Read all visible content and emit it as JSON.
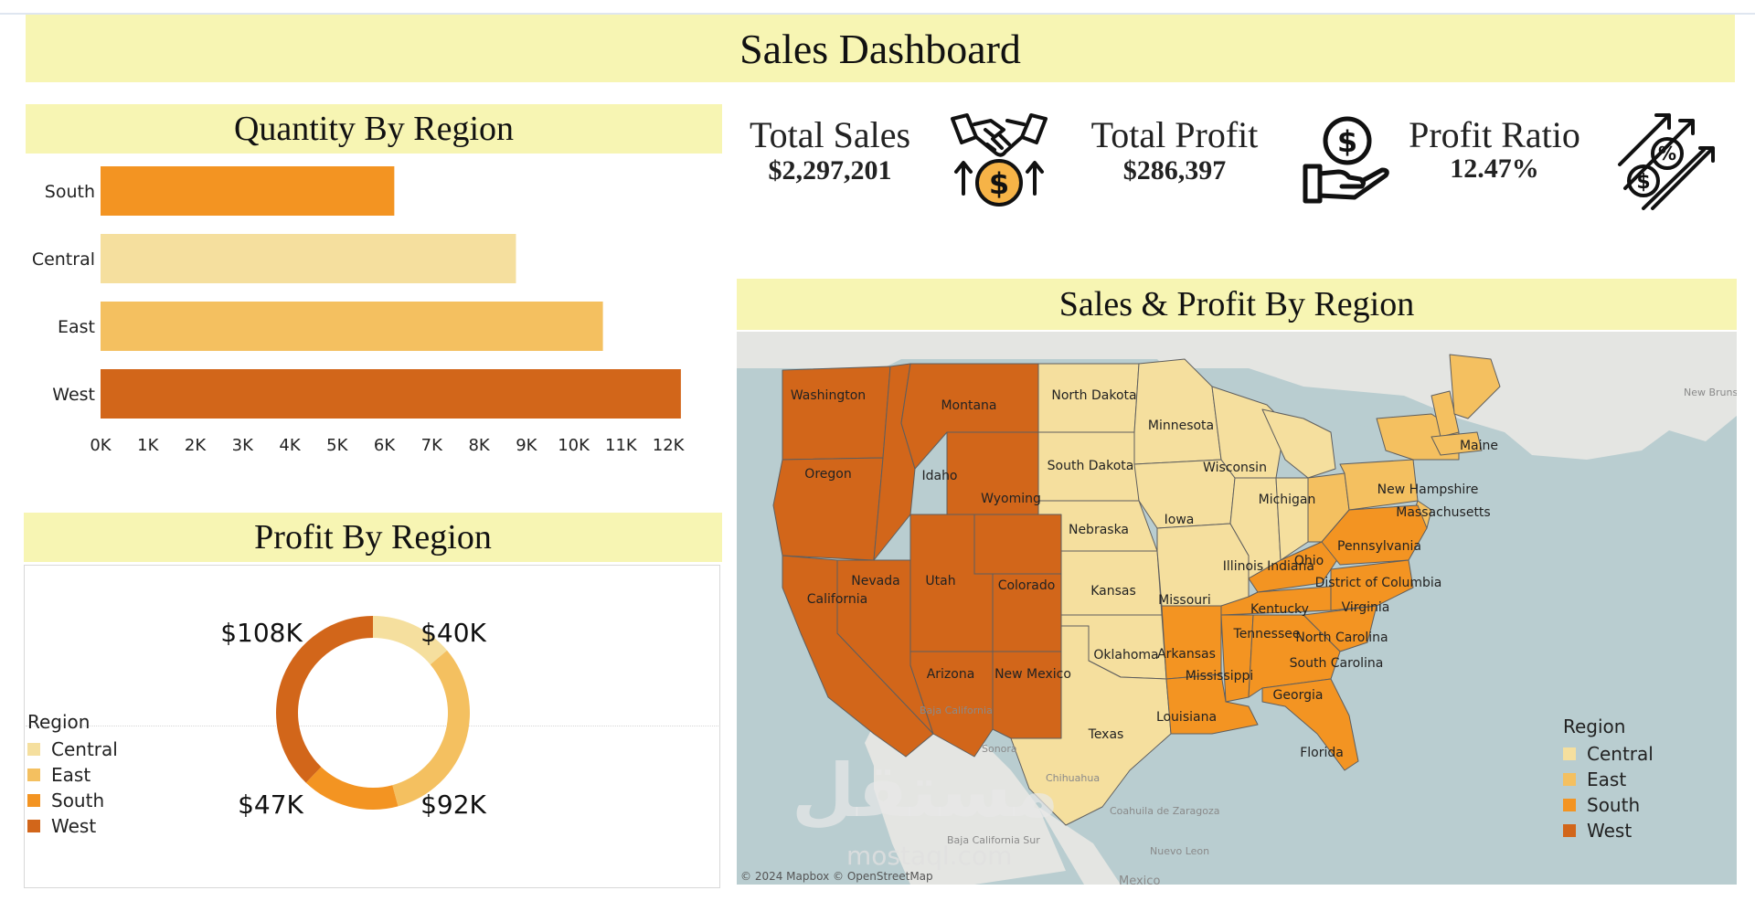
{
  "header": {
    "title": "Sales Dashboard"
  },
  "colors": {
    "Central": "#f5df9e",
    "East": "#f4c060",
    "South": "#f39422",
    "West": "#d2661a",
    "banner": "#f7f5b3",
    "water": "#b9cdd0",
    "land": "#e4e5e2"
  },
  "kpis": {
    "total_sales": {
      "label": "Total Sales",
      "value": "$2,297,201",
      "icon": "handshake-money-icon"
    },
    "total_profit": {
      "label": "Total Profit",
      "value": "$286,397",
      "icon": "hand-dollar-coin-icon"
    },
    "profit_ratio": {
      "label": "Profit Ratio",
      "value": "12.47%",
      "icon": "growth-arrows-percent-icon"
    }
  },
  "quantity_panel": {
    "title": "Quantity By Region"
  },
  "profit_panel": {
    "title": "Profit By Region",
    "legend_title": "Region",
    "legend": [
      "Central",
      "East",
      "South",
      "West"
    ]
  },
  "map_panel": {
    "title": "Sales & Profit By Region",
    "legend_title": "Region",
    "legend": [
      "Central",
      "East",
      "South",
      "West"
    ],
    "attribution": "© 2024 Mapbox © OpenStreetMap",
    "states": [
      {
        "name": "Washington",
        "region": "West"
      },
      {
        "name": "Oregon",
        "region": "West"
      },
      {
        "name": "California",
        "region": "West"
      },
      {
        "name": "Idaho",
        "region": "West"
      },
      {
        "name": "Nevada",
        "region": "West"
      },
      {
        "name": "Montana",
        "region": "West"
      },
      {
        "name": "Wyoming",
        "region": "West"
      },
      {
        "name": "Utah",
        "region": "West"
      },
      {
        "name": "Colorado",
        "region": "West"
      },
      {
        "name": "Arizona",
        "region": "West"
      },
      {
        "name": "New Mexico",
        "region": "West"
      },
      {
        "name": "North Dakota",
        "region": "Central"
      },
      {
        "name": "South Dakota",
        "region": "Central"
      },
      {
        "name": "Nebraska",
        "region": "Central"
      },
      {
        "name": "Kansas",
        "region": "Central"
      },
      {
        "name": "Oklahoma",
        "region": "Central"
      },
      {
        "name": "Texas",
        "region": "Central"
      },
      {
        "name": "Minnesota",
        "region": "Central"
      },
      {
        "name": "Iowa",
        "region": "Central"
      },
      {
        "name": "Missouri",
        "region": "Central"
      },
      {
        "name": "Wisconsin",
        "region": "Central"
      },
      {
        "name": "Illinois",
        "region": "Central"
      },
      {
        "name": "Indiana",
        "region": "Central"
      },
      {
        "name": "Michigan",
        "region": "Central"
      },
      {
        "name": "Ohio",
        "region": "East"
      },
      {
        "name": "Pennsylvania",
        "region": "East"
      },
      {
        "name": "New Hampshire",
        "region": "East"
      },
      {
        "name": "Massachusetts",
        "region": "East"
      },
      {
        "name": "Maine",
        "region": "East"
      },
      {
        "name": "District of Columbia",
        "region": "East"
      },
      {
        "name": "Kentucky",
        "region": "South"
      },
      {
        "name": "Virginia",
        "region": "South"
      },
      {
        "name": "Tennessee",
        "region": "South"
      },
      {
        "name": "North Carolina",
        "region": "South"
      },
      {
        "name": "South Carolina",
        "region": "South"
      },
      {
        "name": "Arkansas",
        "region": "South"
      },
      {
        "name": "Mississippi",
        "region": "South"
      },
      {
        "name": "Louisiana",
        "region": "South"
      },
      {
        "name": "Georgia",
        "region": "South"
      },
      {
        "name": "Florida",
        "region": "South"
      }
    ],
    "basemap_labels": [
      "New Brunswick",
      "Baja California",
      "Sonora",
      "Chihuahua",
      "Coahuila de Zaragoza",
      "Nuevo Leon",
      "Mexico",
      "Baja California Sur"
    ]
  },
  "watermark": {
    "text": "مستقل",
    "subtext": "mostaql.com"
  },
  "chart_data": [
    {
      "type": "bar",
      "orientation": "horizontal",
      "title": "Quantity By Region",
      "categories": [
        "South",
        "Central",
        "East",
        "West"
      ],
      "values": [
        6209,
        8780,
        10618,
        12266
      ],
      "xlim": [
        0,
        12500
      ],
      "x_ticks": [
        "0K",
        "1K",
        "2K",
        "3K",
        "4K",
        "5K",
        "6K",
        "7K",
        "8K",
        "9K",
        "10K",
        "11K",
        "12K"
      ],
      "colors": [
        "#f39422",
        "#f5df9e",
        "#f4c060",
        "#d2661a"
      ]
    },
    {
      "type": "pie",
      "donut": true,
      "title": "Profit By Region",
      "categories": [
        "Central",
        "East",
        "South",
        "West"
      ],
      "values": [
        39706,
        91523,
        46749,
        108418
      ],
      "labels": [
        "$40K",
        "$92K",
        "$47K",
        "$108K"
      ],
      "colors": [
        "#f5df9e",
        "#f4c060",
        "#f39422",
        "#d2661a"
      ]
    }
  ]
}
